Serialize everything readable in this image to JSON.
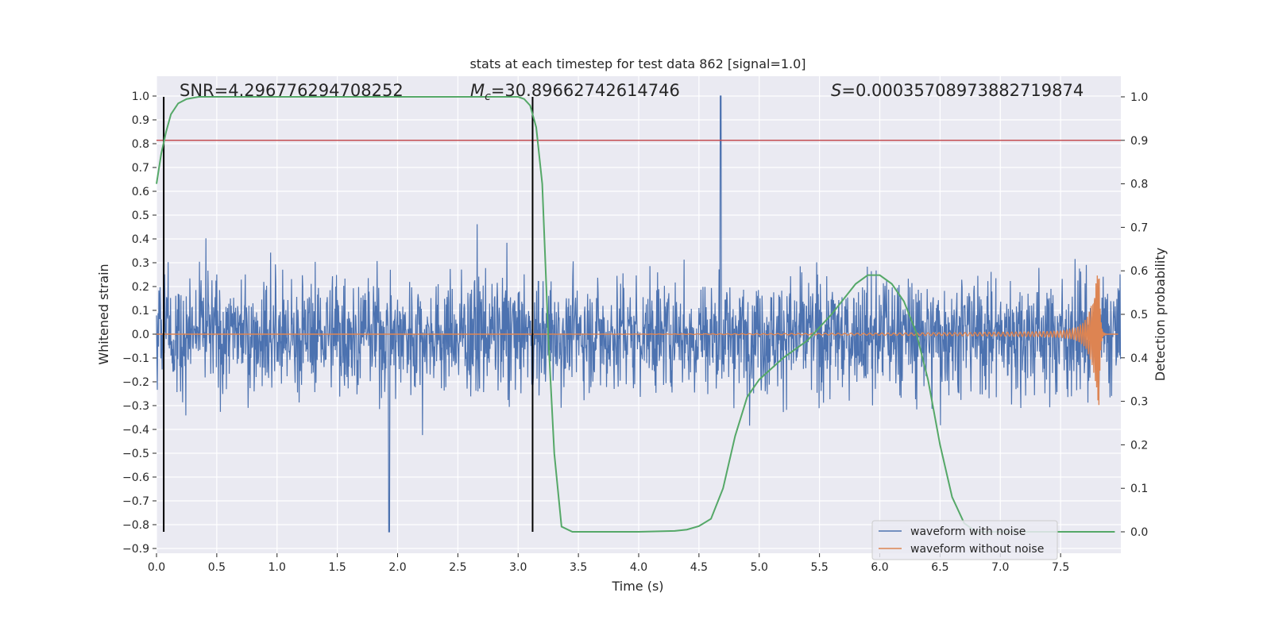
{
  "chart_data": {
    "type": "line",
    "title": "stats at each timestep for test data 862 [signal=1.0]",
    "xlabel": "Time (s)",
    "ylabel_left": "Whitened strain",
    "ylabel_right": "Detection probability",
    "xlim": [
      0.0,
      8.0
    ],
    "ylim_left": [
      -0.92,
      1.085
    ],
    "ylim_right": [
      0.0,
      1.0
    ],
    "x_ticks": [
      "0.0",
      "0.5",
      "1.0",
      "1.5",
      "2.0",
      "2.5",
      "3.0",
      "3.5",
      "4.0",
      "4.5",
      "5.0",
      "5.5",
      "6.0",
      "6.5",
      "7.0",
      "7.5"
    ],
    "y_left_ticks": [
      "−0.9",
      "−0.8",
      "−0.7",
      "−0.6",
      "−0.5",
      "−0.4",
      "−0.3",
      "−0.2",
      "−0.1",
      "0.0",
      "0.1",
      "0.2",
      "0.3",
      "0.4",
      "0.5",
      "0.6",
      "0.7",
      "0.8",
      "0.9",
      "1.0"
    ],
    "y_right_ticks": [
      "0.0",
      "0.1",
      "0.2",
      "0.3",
      "0.4",
      "0.5",
      "0.6",
      "0.7",
      "0.8",
      "0.9",
      "1.0"
    ],
    "annotations": {
      "snr": "SNR=4.296776294708252",
      "mc_symbol": "M",
      "mc_subscript": "c",
      "mc_value": "=30.89662742614746",
      "s_symbol": "S",
      "s_value": "=0.0003570897388271987​4"
    },
    "threshold_line": {
      "right_axis_value": 0.9,
      "color": "#c44e52"
    },
    "vertical_markers": [
      0.06,
      3.12
    ],
    "series": [
      {
        "name": "waveform with noise",
        "color": "#4c72b0",
        "description": "noise envelope roughly between -0.5 and 0.6 with spikes up to 1.0 near t=4.68 and down to -0.83 near t=1.93"
      },
      {
        "name": "waveform without noise",
        "color": "#dd8452",
        "description": "chirp signal near 0 growing in amplitude, peaking ~0.33 near t=7.8"
      },
      {
        "name": "detection probability",
        "color": "#55a868",
        "axis": "right",
        "x": [
          0.0,
          0.04,
          0.08,
          0.12,
          0.18,
          0.25,
          0.35,
          0.5,
          1.0,
          2.0,
          2.5,
          3.0,
          3.05,
          3.1,
          3.15,
          3.2,
          3.25,
          3.3,
          3.36,
          3.45,
          3.6,
          4.0,
          4.3,
          4.4,
          4.5,
          4.6,
          4.7,
          4.8,
          4.9,
          5.0,
          5.2,
          5.4,
          5.6,
          5.8,
          5.9,
          6.0,
          6.1,
          6.2,
          6.3,
          6.4,
          6.5,
          6.6,
          6.7,
          6.8,
          7.0,
          7.5,
          7.95
        ],
        "y": [
          0.8,
          0.87,
          0.92,
          0.96,
          0.985,
          0.995,
          1.0,
          1.0,
          1.0,
          1.0,
          1.0,
          1.0,
          0.995,
          0.98,
          0.93,
          0.8,
          0.45,
          0.18,
          0.012,
          0.0,
          0.0,
          0.0,
          0.002,
          0.005,
          0.013,
          0.03,
          0.1,
          0.22,
          0.31,
          0.35,
          0.4,
          0.44,
          0.5,
          0.57,
          0.59,
          0.59,
          0.57,
          0.53,
          0.46,
          0.35,
          0.2,
          0.08,
          0.02,
          0.0,
          0.0,
          0.0,
          0.0
        ]
      }
    ],
    "legend": [
      {
        "label": "waveform with noise",
        "color": "#4c72b0"
      },
      {
        "label": "waveform without noise",
        "color": "#dd8452"
      }
    ]
  },
  "colors": {
    "plot_background": "#eaeaf2",
    "grid": "#ffffff",
    "noise": "#4c72b0",
    "signal": "#dd8452",
    "probability": "#55a868",
    "threshold": "#c44e52",
    "marker": "#000000"
  }
}
